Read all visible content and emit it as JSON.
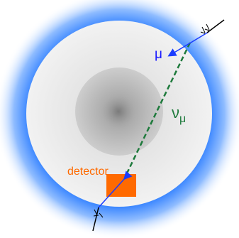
{
  "labels": {
    "muon": "μ",
    "neutrino": "ν",
    "neutrino_subscript": "μ",
    "detector": "detector"
  }
}
